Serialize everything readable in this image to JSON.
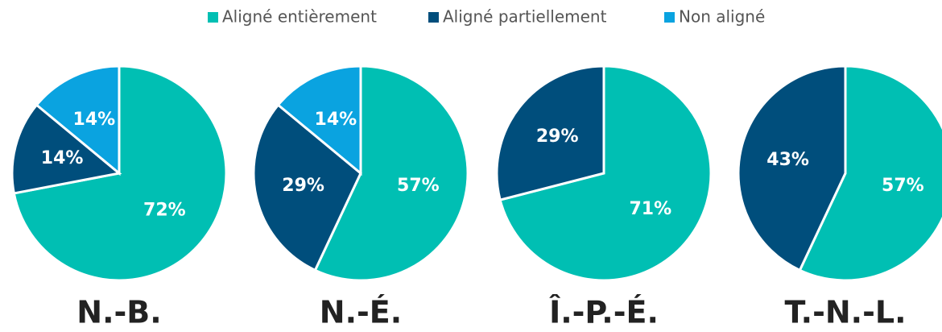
{
  "chart_data": {
    "type": "pie",
    "series": [
      {
        "name": "Aligné entièrement",
        "color": "#00bfb3"
      },
      {
        "name": "Aligné partiellement",
        "color": "#004e7c"
      },
      {
        "name": "Non aligné",
        "color": "#0aa3e0"
      }
    ],
    "pies": [
      {
        "title": "N.-B.",
        "values": [
          72,
          14,
          14
        ],
        "value_labels": [
          "72%",
          "14%",
          "14%"
        ]
      },
      {
        "title": "N.-É.",
        "values": [
          57,
          29,
          14
        ],
        "value_labels": [
          "57%",
          "29%",
          "14%"
        ]
      },
      {
        "title": "Î.-P.-É.",
        "values": [
          71,
          29
        ],
        "value_labels": [
          "71%",
          "29%"
        ]
      },
      {
        "title": "T.-N.-L.",
        "values": [
          57,
          43
        ],
        "value_labels": [
          "57%",
          "43%"
        ]
      }
    ]
  }
}
